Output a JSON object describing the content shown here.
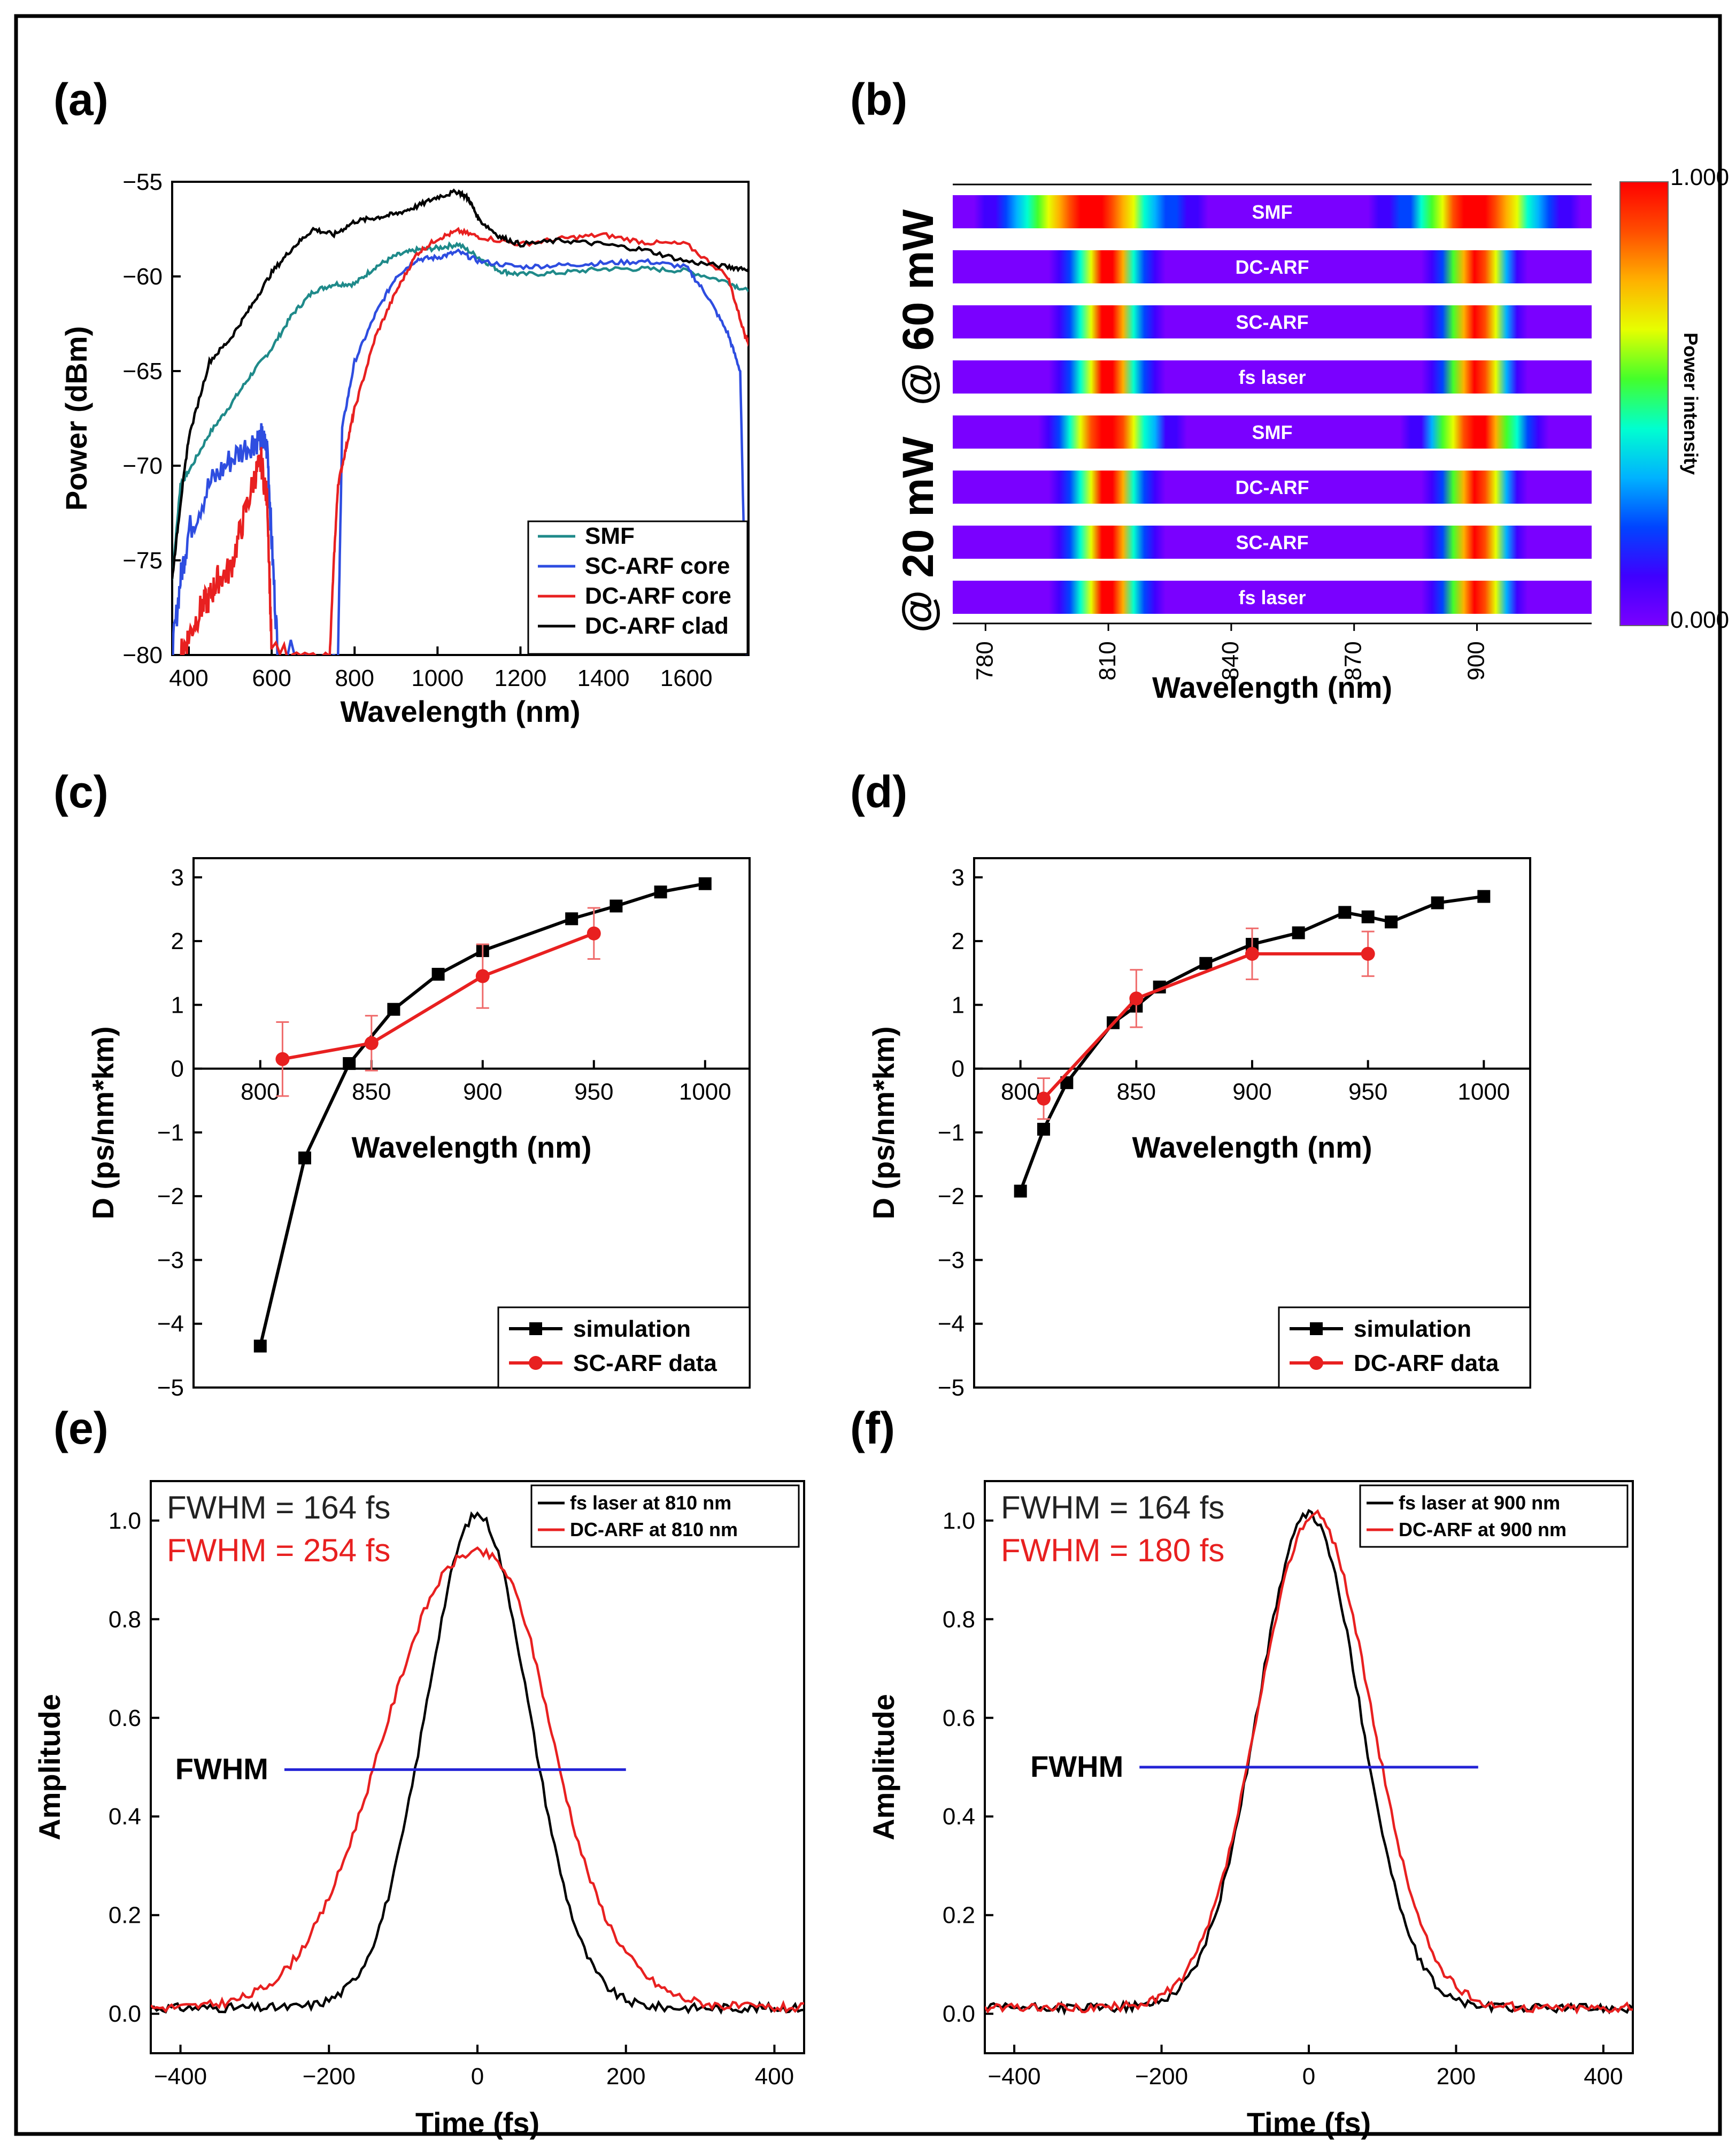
{
  "chart_data": [
    {
      "id": "a",
      "panel_label": "(a)",
      "type": "line",
      "xlabel": "Wavelength (nm)",
      "ylabel": "Power (dBm)",
      "xlim": [
        360,
        1750
      ],
      "ylim": [
        -80,
        -55
      ],
      "xticks": [
        400,
        600,
        800,
        1000,
        1200,
        1400,
        1600
      ],
      "yticks": [
        -80,
        -75,
        -70,
        -65,
        -60,
        -55
      ],
      "legend": "bottom-right",
      "series": [
        {
          "name": "SMF",
          "color": "#1f8a8a",
          "x": [
            360,
            380,
            400,
            450,
            500,
            550,
            600,
            650,
            700,
            750,
            800,
            850,
            900,
            950,
            1000,
            1050,
            1100,
            1150,
            1200,
            1300,
            1400,
            1500,
            1600,
            1700,
            1750
          ],
          "y": [
            -76,
            -71,
            -70.3,
            -68.3,
            -66.8,
            -65.2,
            -63.8,
            -62,
            -60.8,
            -60.4,
            -60.4,
            -59.5,
            -58.9,
            -58.6,
            -58.5,
            -58.3,
            -59,
            -59.7,
            -59.9,
            -59.8,
            -59.6,
            -59.6,
            -59.7,
            -60.3,
            -60.8
          ]
        },
        {
          "name": "SC-ARF core",
          "color": "#2e4de0",
          "x": [
            360,
            380,
            400,
            450,
            500,
            550,
            575,
            590,
            600,
            615,
            760,
            770,
            800,
            850,
            900,
            950,
            1000,
            1050,
            1100,
            1200,
            1300,
            1400,
            1500,
            1600,
            1650,
            1700,
            1730,
            1745
          ],
          "y": [
            -80,
            -76,
            -73.5,
            -71,
            -69.7,
            -68.8,
            -68.5,
            -69.2,
            -74,
            -80,
            -80,
            -68,
            -64.5,
            -62,
            -60,
            -59.1,
            -59,
            -58.7,
            -59.2,
            -59.5,
            -59.4,
            -59.3,
            -59.2,
            -59.5,
            -61,
            -63,
            -65,
            -80
          ]
        },
        {
          "name": "DC-ARF core",
          "color": "#e82020",
          "x": [
            380,
            400,
            430,
            450,
            470,
            500,
            530,
            560,
            575,
            590,
            600,
            740,
            750,
            760,
            780,
            800,
            850,
            900,
            950,
            1000,
            1050,
            1100,
            1200,
            1300,
            1400,
            1500,
            1600,
            1700,
            1740,
            1750
          ],
          "y": [
            -80,
            -79,
            -77.5,
            -77,
            -76,
            -75.5,
            -73,
            -70.5,
            -69.8,
            -72,
            -80,
            -80,
            -75,
            -71,
            -69,
            -67,
            -63.2,
            -60.8,
            -58.8,
            -58,
            -57.6,
            -57.9,
            -58.3,
            -58,
            -57.8,
            -58.2,
            -58.3,
            -60,
            -63,
            -63.5
          ]
        },
        {
          "name": "DC-ARF clad",
          "color": "#000000",
          "x": [
            360,
            380,
            400,
            450,
            500,
            550,
            600,
            650,
            700,
            750,
            800,
            850,
            900,
            950,
            1000,
            1050,
            1075,
            1100,
            1150,
            1200,
            1300,
            1400,
            1500,
            1600,
            1700,
            1750
          ],
          "y": [
            -76,
            -72,
            -68.5,
            -64.5,
            -63.3,
            -61.6,
            -59.8,
            -58.5,
            -57.5,
            -57.8,
            -57.1,
            -56.9,
            -56.7,
            -56.3,
            -55.8,
            -55.5,
            -55.9,
            -57,
            -57.9,
            -58.3,
            -58.1,
            -58.3,
            -58.6,
            -59.2,
            -59.5,
            -59.6
          ]
        }
      ]
    },
    {
      "id": "b",
      "panel_label": "(b)",
      "type": "heatmap",
      "xlabel": "Wavelength (nm)",
      "colorbar_label": "Power intensity",
      "colorbar_max_label": "1.000",
      "colorbar_min_label": "0.000",
      "group_labels": [
        "@ 60 mW",
        "@ 20 mW"
      ],
      "xlim": [
        772,
        928
      ],
      "xticks": [
        780,
        810,
        840,
        870,
        900
      ],
      "rows": [
        {
          "label": "SMF",
          "peaks": [
            {
              "center": 805,
              "width": 16
            },
            {
              "center": 900,
              "width": 14
            }
          ]
        },
        {
          "label": "DC-ARF",
          "peaks": [
            {
              "center": 810,
              "width": 7
            },
            {
              "center": 900,
              "width": 7
            }
          ]
        },
        {
          "label": "SC-ARF",
          "peaks": [
            {
              "center": 810,
              "width": 7
            },
            {
              "center": 900,
              "width": 7
            }
          ]
        },
        {
          "label": "fs laser",
          "peaks": [
            {
              "center": 810,
              "width": 7
            },
            {
              "center": 900,
              "width": 7
            }
          ]
        },
        {
          "label": "SMF",
          "peaks": [
            {
              "center": 810,
              "width": 10
            },
            {
              "center": 900,
              "width": 10
            }
          ]
        },
        {
          "label": "DC-ARF",
          "peaks": [
            {
              "center": 810,
              "width": 7
            },
            {
              "center": 900,
              "width": 7
            }
          ]
        },
        {
          "label": "SC-ARF",
          "peaks": [
            {
              "center": 810,
              "width": 7
            },
            {
              "center": 900,
              "width": 7
            }
          ]
        },
        {
          "label": "fs laser",
          "peaks": [
            {
              "center": 810,
              "width": 7
            },
            {
              "center": 900,
              "width": 7
            }
          ]
        }
      ]
    },
    {
      "id": "c",
      "panel_label": "(c)",
      "type": "line",
      "xlabel": "Wavelength (nm)",
      "ylabel": "D (ps/nm*km)",
      "xlim": [
        770,
        1020
      ],
      "ylim": [
        -5,
        3.3
      ],
      "xticks": [
        800,
        850,
        900,
        950,
        1000
      ],
      "yticks": [
        -5,
        -4,
        -3,
        -2,
        -1,
        0,
        1,
        2,
        3
      ],
      "legend": "bottom-right",
      "series": [
        {
          "name": "simulation",
          "color": "#000000",
          "marker": "square",
          "x": [
            800,
            820,
            840,
            860,
            880,
            900,
            940,
            960,
            980,
            1000
          ],
          "y": [
            -4.35,
            -1.4,
            0.08,
            0.93,
            1.48,
            1.85,
            2.35,
            2.55,
            2.77,
            2.9
          ]
        },
        {
          "name": "SC-ARF data",
          "color": "#e82020",
          "marker": "circle",
          "x": [
            810,
            850,
            900,
            950
          ],
          "y": [
            0.15,
            0.4,
            1.45,
            2.12
          ],
          "yerr": [
            0.58,
            0.43,
            0.5,
            0.4
          ]
        }
      ]
    },
    {
      "id": "d",
      "panel_label": "(d)",
      "type": "line",
      "xlabel": "Wavelength (nm)",
      "ylabel": "D (ps/nm*km)",
      "xlim": [
        780,
        1020
      ],
      "ylim": [
        -5,
        3.3
      ],
      "xticks": [
        800,
        850,
        900,
        950,
        1000
      ],
      "yticks": [
        -5,
        -4,
        -3,
        -2,
        -1,
        0,
        1,
        2,
        3
      ],
      "legend": "bottom-right",
      "series": [
        {
          "name": "simulation",
          "color": "#000000",
          "marker": "square",
          "x": [
            800,
            810,
            820,
            840,
            850,
            860,
            880,
            900,
            920,
            940,
            950,
            960,
            980,
            1000
          ],
          "y": [
            -1.92,
            -0.95,
            -0.22,
            0.72,
            0.98,
            1.28,
            1.65,
            1.95,
            2.13,
            2.45,
            2.38,
            2.3,
            2.6,
            2.7
          ]
        },
        {
          "name": "DC-ARF data",
          "color": "#e82020",
          "marker": "circle",
          "x": [
            810,
            850,
            900,
            950
          ],
          "y": [
            -0.47,
            1.1,
            1.8,
            1.8
          ],
          "yerr": [
            0.32,
            0.45,
            0.4,
            0.35
          ]
        }
      ]
    },
    {
      "id": "e",
      "panel_label": "(e)",
      "type": "line",
      "xlabel": "Time (fs)",
      "ylabel": "Amplitude",
      "xlim": [
        -440,
        440
      ],
      "ylim": [
        -0.08,
        1.08
      ],
      "xticks": [
        -400,
        -200,
        0,
        200,
        400
      ],
      "yticks": [
        0.0,
        0.2,
        0.4,
        0.6,
        0.8,
        1.0
      ],
      "legend": "top-right",
      "annotations": [
        "FWHM = 164 fs",
        "FWHM = 254 fs",
        "FWHM"
      ],
      "fwhm_line": {
        "x": [
          -260,
          200
        ],
        "y": 0.495,
        "color": "#2323d6"
      },
      "series": [
        {
          "name": "fs laser at 810 nm",
          "color": "#000000",
          "fwhm": 164,
          "peak_x": 0
        },
        {
          "name": "DC-ARF at 810 nm",
          "color": "#e82020",
          "fwhm": 254,
          "peak_x": 0
        }
      ]
    },
    {
      "id": "f",
      "panel_label": "(f)",
      "type": "line",
      "xlabel": "Time (fs)",
      "ylabel": "Amplitude",
      "xlim": [
        -440,
        440
      ],
      "ylim": [
        -0.08,
        1.08
      ],
      "xticks": [
        -400,
        -200,
        0,
        200,
        400
      ],
      "yticks": [
        0.0,
        0.2,
        0.4,
        0.6,
        0.8,
        1.0
      ],
      "legend": "top-right",
      "annotations": [
        "FWHM = 164 fs",
        "FWHM = 180 fs",
        "FWHM"
      ],
      "fwhm_line": {
        "x": [
          -230,
          230
        ],
        "y": 0.5,
        "color": "#2323d6"
      },
      "series": [
        {
          "name": "fs laser at 900 nm",
          "color": "#000000",
          "fwhm": 164,
          "peak_x": 0
        },
        {
          "name": "DC-ARF at 900 nm",
          "color": "#e82020",
          "fwhm": 180,
          "peak_x": 8
        }
      ]
    }
  ]
}
